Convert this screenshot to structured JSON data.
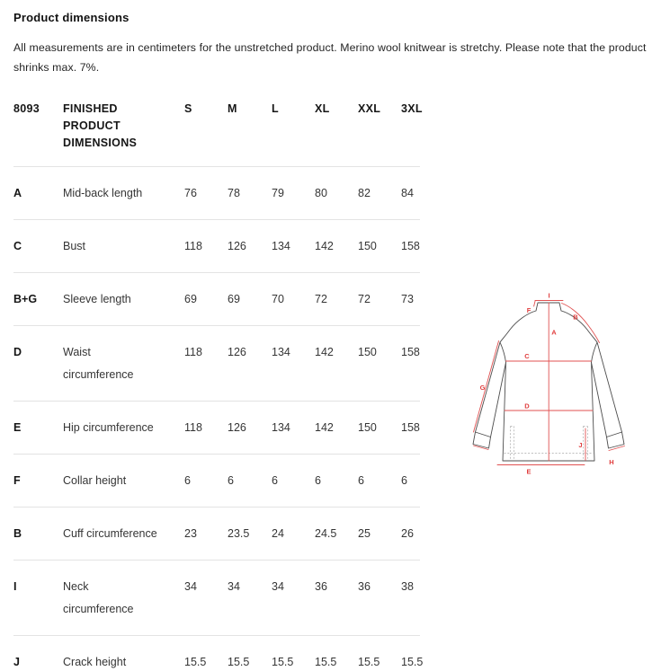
{
  "page": {
    "title": "Product dimensions",
    "description": "All measurements are in centimeters for the unstretched product. Merino wool knitwear is stretchy. Please note that the product shrinks max. 7%."
  },
  "table": {
    "product_code": "8093",
    "header_label": "FINISHED\nPRODUCT\nDIMENSIONS",
    "sizes": [
      "S",
      "M",
      "L",
      "XL",
      "XXL",
      "3XL"
    ],
    "rows": [
      {
        "letter": "A",
        "label": "Mid-back length",
        "values": [
          "76",
          "78",
          "79",
          "80",
          "82",
          "84"
        ]
      },
      {
        "letter": "C",
        "label": "Bust",
        "values": [
          "118",
          "126",
          "134",
          "142",
          "150",
          "158"
        ]
      },
      {
        "letter": "B+G",
        "label": "Sleeve length",
        "values": [
          "69",
          "69",
          "70",
          "72",
          "72",
          "73"
        ]
      },
      {
        "letter": "D",
        "label": "Waist\ncircumference",
        "values": [
          "118",
          "126",
          "134",
          "142",
          "150",
          "158"
        ]
      },
      {
        "letter": "E",
        "label": "Hip circumference",
        "values": [
          "118",
          "126",
          "134",
          "142",
          "150",
          "158"
        ]
      },
      {
        "letter": "F",
        "label": "Collar height",
        "values": [
          "6",
          "6",
          "6",
          "6",
          "6",
          "6"
        ]
      },
      {
        "letter": "B",
        "label": "Cuff circumference",
        "values": [
          "23",
          "23.5",
          "24",
          "24.5",
          "25",
          "26"
        ]
      },
      {
        "letter": "I",
        "label": "Neck\ncircumference",
        "values": [
          "34",
          "34",
          "34",
          "36",
          "36",
          "38"
        ]
      },
      {
        "letter": "J",
        "label": "Crack height",
        "values": [
          "15.5",
          "15.5",
          "15.5",
          "15.5",
          "15.5",
          "15.5"
        ]
      }
    ]
  },
  "diagram": {
    "accent_color": "#e05252",
    "outline_color": "#4d4d4d",
    "labels": {
      "i": "I",
      "f": "F",
      "b": "B",
      "a": "A",
      "c": "C",
      "g": "G",
      "d": "D",
      "j": "J",
      "h": "H",
      "e": "E"
    }
  }
}
